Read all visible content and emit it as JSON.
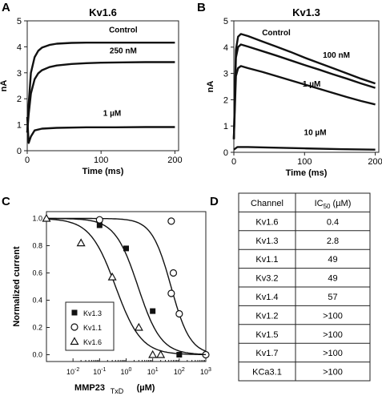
{
  "panel_labels": [
    "A",
    "B",
    "C",
    "D"
  ],
  "chart_data": [
    {
      "panel": "A",
      "type": "line",
      "title": "Kv1.6",
      "xlabel": "Time (ms)",
      "ylabel": "nA",
      "xlim": [
        0,
        205
      ],
      "ylim": [
        0,
        5
      ],
      "x_ticks": [
        0,
        100,
        200
      ],
      "y_ticks": [
        0,
        1,
        2,
        3,
        4,
        5
      ],
      "series": [
        {
          "name": "Control",
          "x": [
            0,
            2,
            5,
            10,
            15,
            20,
            30,
            40,
            60,
            80,
            100,
            130,
            160,
            200
          ],
          "y": [
            0.7,
            1.8,
            3.0,
            3.6,
            3.85,
            3.97,
            4.07,
            4.12,
            4.15,
            4.16,
            4.16,
            4.16,
            4.16,
            4.16
          ]
        },
        {
          "name": "250 nM",
          "x": [
            0,
            2,
            5,
            10,
            15,
            20,
            30,
            40,
            60,
            80,
            100,
            130,
            160,
            200
          ],
          "y": [
            0.7,
            1.4,
            2.2,
            2.75,
            2.98,
            3.1,
            3.22,
            3.28,
            3.34,
            3.37,
            3.39,
            3.4,
            3.41,
            3.41
          ]
        },
        {
          "name": "1 µM",
          "x": [
            0,
            2,
            5,
            10,
            20,
            40,
            80,
            120,
            160,
            200
          ],
          "y": [
            1.3,
            0.3,
            0.55,
            0.78,
            0.85,
            0.88,
            0.9,
            0.9,
            0.91,
            0.91
          ]
        }
      ]
    },
    {
      "panel": "B",
      "type": "line",
      "title": "Kv1.3",
      "xlabel": "Time (ms)",
      "ylabel": "nA",
      "xlim": [
        0,
        205
      ],
      "ylim": [
        0,
        5
      ],
      "x_ticks": [
        0,
        100,
        200
      ],
      "y_ticks": [
        0,
        1,
        2,
        3,
        4,
        5
      ],
      "series": [
        {
          "name": "Control",
          "x": [
            0,
            3,
            6,
            10,
            20,
            40,
            60,
            80,
            100,
            120,
            140,
            160,
            180,
            200
          ],
          "y": [
            0.5,
            3.9,
            4.4,
            4.5,
            4.42,
            4.22,
            4.02,
            3.82,
            3.6,
            3.4,
            3.2,
            3.0,
            2.8,
            2.62
          ]
        },
        {
          "name": "100 nM",
          "x": [
            0,
            3,
            6,
            10,
            20,
            40,
            60,
            80,
            100,
            120,
            140,
            160,
            180,
            200
          ],
          "y": [
            0.5,
            3.6,
            4.0,
            4.1,
            4.02,
            3.85,
            3.68,
            3.5,
            3.32,
            3.15,
            2.97,
            2.8,
            2.62,
            2.45
          ]
        },
        {
          "name": "1 µM",
          "x": [
            0,
            3,
            6,
            10,
            20,
            40,
            60,
            80,
            100,
            120,
            140,
            160,
            180,
            200
          ],
          "y": [
            0.5,
            2.9,
            3.2,
            3.28,
            3.2,
            3.06,
            2.9,
            2.74,
            2.58,
            2.42,
            2.26,
            2.1,
            1.95,
            1.82
          ]
        },
        {
          "name": "10 µM",
          "x": [
            0,
            5,
            20,
            50,
            100,
            150,
            200
          ],
          "y": [
            0.1,
            0.2,
            0.2,
            0.18,
            0.15,
            0.12,
            0.1
          ]
        }
      ]
    },
    {
      "panel": "C",
      "type": "scatter",
      "xlabel_main": "MMP23",
      "xlabel_sub": "TxD",
      "xlabel_unit": "(µM)",
      "ylabel": "Normalized current",
      "x_scale": "log",
      "xlim": [
        0.001,
        1000
      ],
      "ylim": [
        -0.05,
        1.05
      ],
      "x_tick_exponents": [
        "-2",
        "-1",
        "0",
        "1",
        "2",
        "3"
      ],
      "x_tick_values": [
        0.01,
        0.1,
        1,
        10,
        100,
        1000
      ],
      "y_ticks": [
        "0.0",
        "0.2",
        "0.4",
        "0.6",
        "0.8",
        "1.0"
      ],
      "y_tick_values": [
        0,
        0.2,
        0.4,
        0.6,
        0.8,
        1.0
      ],
      "legend_position": "bottom-left",
      "series": [
        {
          "name": "Kv1.3",
          "marker": "filled-square",
          "points": [
            [
              0.1,
              0.95
            ],
            [
              1,
              0.78
            ],
            [
              10,
              0.32
            ],
            [
              100,
              0.0
            ]
          ],
          "fit": {
            "ic50": 2.8,
            "n": 1.0
          }
        },
        {
          "name": "Kv1.1",
          "marker": "open-circle",
          "points": [
            [
              0.1,
              0.99
            ],
            [
              50,
              0.98
            ],
            [
              60,
              0.6
            ],
            [
              50,
              0.45
            ],
            [
              100,
              0.3
            ],
            [
              1000,
              0.0
            ]
          ],
          "fit": {
            "ic50": 49,
            "n": 1.2
          }
        },
        {
          "name": "Kv1.6",
          "marker": "open-triangle",
          "points": [
            [
              0.001,
              1.0
            ],
            [
              0.02,
              0.82
            ],
            [
              0.3,
              0.57
            ],
            [
              3,
              0.2
            ],
            [
              10,
              0.0
            ],
            [
              20,
              0.0
            ]
          ],
          "fit": {
            "ic50": 0.4,
            "n": 0.9
          }
        }
      ]
    },
    {
      "panel": "D",
      "type": "table",
      "columns": [
        "Channel",
        "IC50 (µM)"
      ],
      "header_ic50_main": "IC",
      "header_ic50_sub": "50",
      "header_ic50_unit": " (µM)",
      "rows": [
        [
          "Kv1.6",
          "0.4"
        ],
        [
          "Kv1.3",
          "2.8"
        ],
        [
          "Kv1.1",
          "49"
        ],
        [
          "Kv3.2",
          "49"
        ],
        [
          "Kv1.4",
          "57"
        ],
        [
          "Kv1.2",
          ">100"
        ],
        [
          "Kv1.5",
          ">100"
        ],
        [
          "Kv1.7",
          ">100"
        ],
        [
          "KCa3.1",
          ">100"
        ]
      ]
    }
  ]
}
